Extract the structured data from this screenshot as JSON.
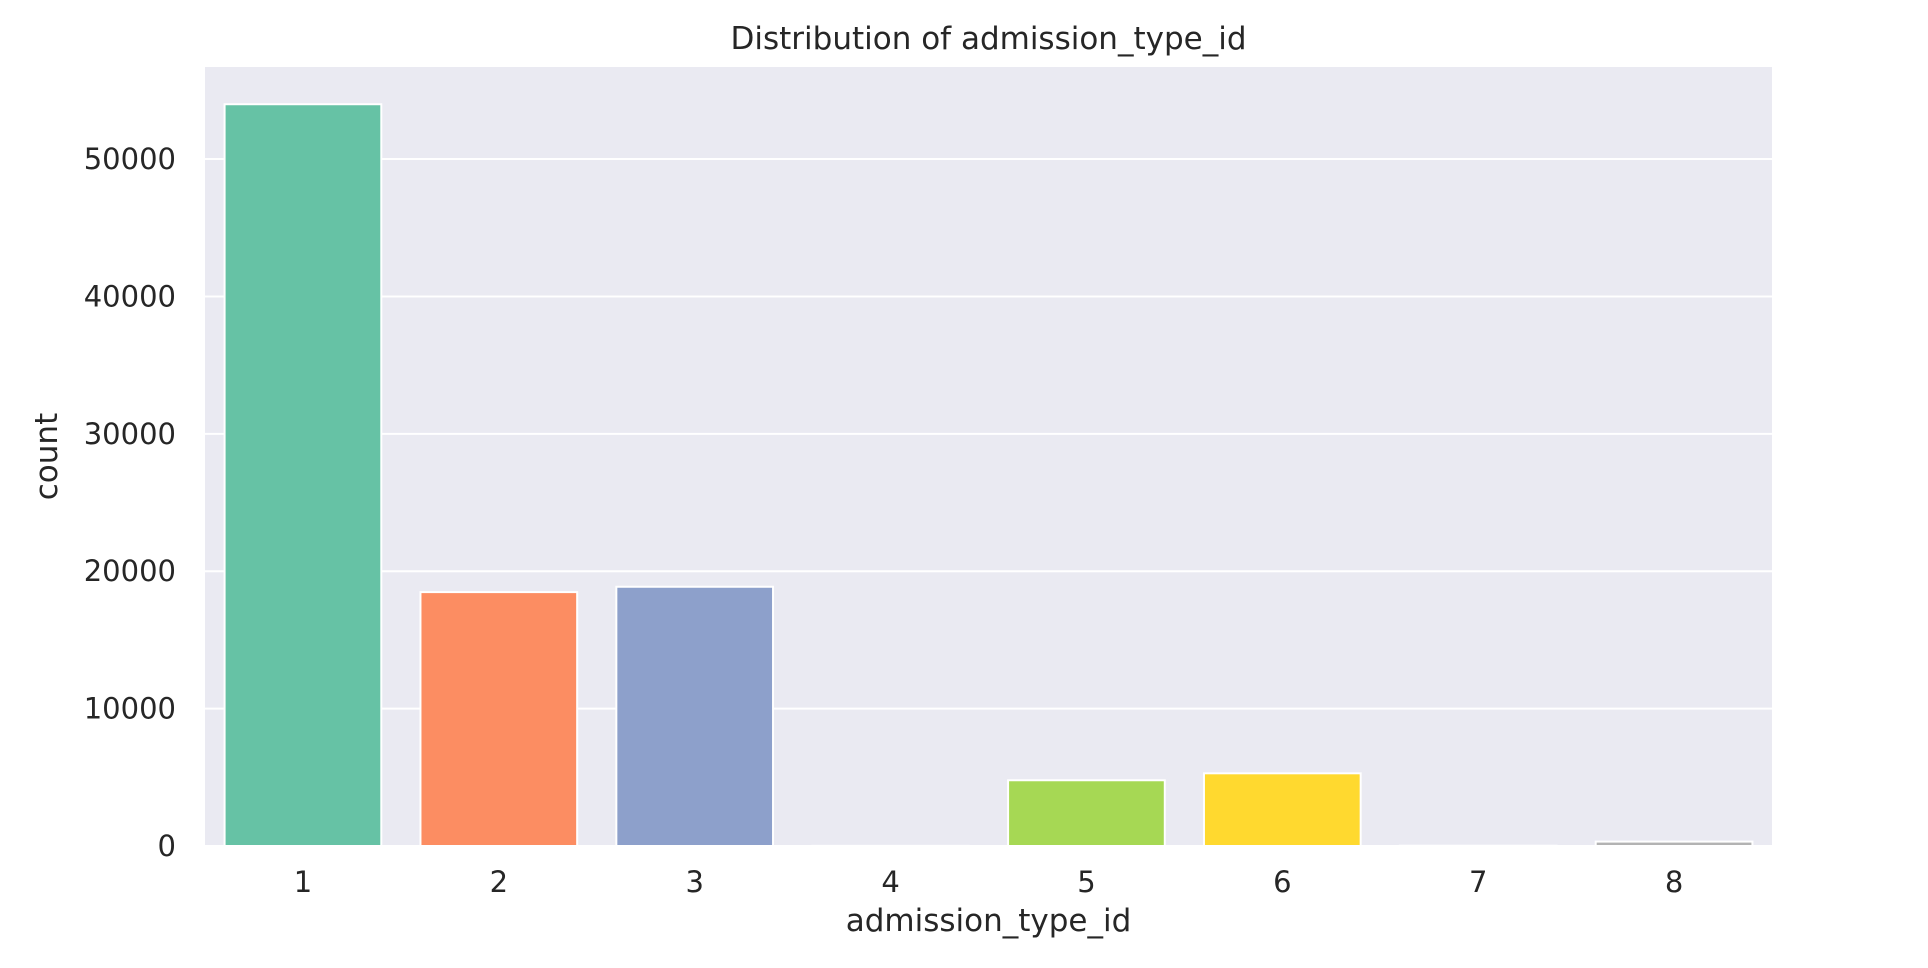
{
  "chart_data": {
    "type": "bar",
    "title": "Distribution of admission_type_id",
    "xlabel": "admission_type_id",
    "ylabel": "count",
    "categories": [
      "1",
      "2",
      "3",
      "4",
      "5",
      "6",
      "7",
      "8"
    ],
    "values": [
      53990,
      18480,
      18869,
      10,
      4785,
      5291,
      21,
      320
    ],
    "colors": [
      "#66c2a5",
      "#fc8d62",
      "#8da0cb",
      "#e78ac3",
      "#a6d854",
      "#ffd92f",
      "#e5c494",
      "#b3b3b3"
    ],
    "ylim": [
      0,
      56700
    ],
    "yticks": [
      0,
      10000,
      20000,
      30000,
      40000,
      50000
    ],
    "ytick_labels": [
      "0",
      "10000",
      "20000",
      "30000",
      "40000",
      "50000"
    ],
    "grid": true,
    "style": {
      "plot_background": "#eaeaf2",
      "grid_color": "#ffffff",
      "bar_edge_color": "#ffffff"
    }
  }
}
